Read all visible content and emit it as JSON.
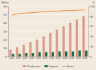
{
  "chart_data": {
    "type": "bar",
    "y_label": "Billion",
    "y2_label": "%",
    "categories": [
      "2010",
      "2011",
      "2012",
      "2013",
      "2014",
      "2015",
      "2016",
      "2017",
      "2018",
      "2019",
      "2020",
      "2021"
    ],
    "series": [
      {
        "name": "Production",
        "color": "#d99c84",
        "values": [
          8,
          11,
          14,
          17,
          20,
          24,
          28,
          32,
          36,
          40,
          44,
          48
        ]
      },
      {
        "name": "Exports",
        "color": "#1f6b4e",
        "values": [
          3,
          3,
          4,
          4,
          5,
          5,
          5,
          6,
          6,
          6,
          7,
          7
        ]
      },
      {
        "name": "Share",
        "type": "line",
        "axis": "y2",
        "color": "#e8873a",
        "values": [
          82,
          85,
          86,
          87,
          88,
          89,
          90,
          90,
          91,
          91,
          92,
          92
        ]
      }
    ],
    "ylim": [
      0,
      60
    ],
    "yticks": [
      0,
      10,
      20,
      30,
      40,
      50,
      60
    ],
    "y2lim": [
      0,
      100
    ],
    "y2ticks": [
      0,
      20,
      40,
      60,
      80,
      100
    ],
    "grid": true,
    "legend": "bottom"
  }
}
